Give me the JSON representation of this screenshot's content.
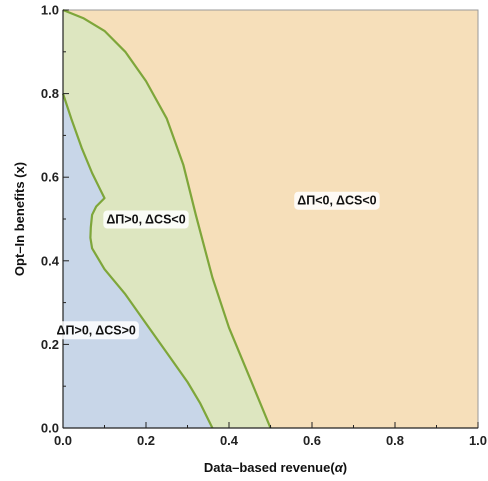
{
  "chart_data": {
    "type": "area",
    "xlabel": "Data–based revenue(",
    "xlabel_symbol": "α",
    "xlabel_close": ")",
    "ylabel": "Opt–In benefits (x)",
    "xlim": [
      0,
      1
    ],
    "ylim": [
      0,
      1
    ],
    "x_ticks": [
      0,
      0.2,
      0.4,
      0.6,
      0.8,
      1
    ],
    "x_tick_labels": [
      "0.0",
      "0.2",
      "0.4",
      "0.6",
      "0.8",
      "1.0"
    ],
    "y_ticks": [
      0,
      0.2,
      0.4,
      0.6,
      0.8,
      1
    ],
    "y_tick_labels": [
      "0.0",
      "0.2",
      "0.4",
      "0.6",
      "0.8",
      "1.0"
    ],
    "grid": false,
    "colors": {
      "blue_region": "#c8d6e8",
      "green_region": "#dde6c0",
      "orange_region": "#f6dfba",
      "boundary": "#7ea63a",
      "axis": "#222222",
      "frame": "#999999"
    },
    "regions": [
      {
        "label": "ΔΠ>0, ΔCS>0",
        "color": "blue",
        "label_at": [
          0.08,
          0.235
        ],
        "boundary": [
          [
            0,
            0
          ],
          [
            0,
            0.8
          ],
          [
            0.02,
            0.74
          ],
          [
            0.045,
            0.67
          ],
          [
            0.07,
            0.61
          ],
          [
            0.09,
            0.57
          ],
          [
            0.1,
            0.55
          ],
          [
            0.08,
            0.53
          ],
          [
            0.07,
            0.51
          ],
          [
            0.067,
            0.48
          ],
          [
            0.066,
            0.455
          ],
          [
            0.07,
            0.43
          ],
          [
            0.1,
            0.38
          ],
          [
            0.15,
            0.32
          ],
          [
            0.2,
            0.25
          ],
          [
            0.25,
            0.18
          ],
          [
            0.3,
            0.11
          ],
          [
            0.33,
            0.06
          ],
          [
            0.36,
            0
          ]
        ]
      },
      {
        "label": "ΔΠ>0, ΔCS<0",
        "color": "green",
        "label_at": [
          0.2,
          0.5
        ],
        "boundary": [
          [
            0,
            1
          ],
          [
            0.05,
            0.98
          ],
          [
            0.1,
            0.95
          ],
          [
            0.15,
            0.9
          ],
          [
            0.2,
            0.83
          ],
          [
            0.25,
            0.74
          ],
          [
            0.29,
            0.63
          ],
          [
            0.32,
            0.51
          ],
          [
            0.36,
            0.36
          ],
          [
            0.4,
            0.24
          ],
          [
            0.45,
            0.12
          ],
          [
            0.5,
            0
          ]
        ]
      },
      {
        "label": "ΔΠ<0, ΔCS<0",
        "color": "orange",
        "label_at": [
          0.66,
          0.545
        ],
        "boundary": []
      }
    ]
  }
}
